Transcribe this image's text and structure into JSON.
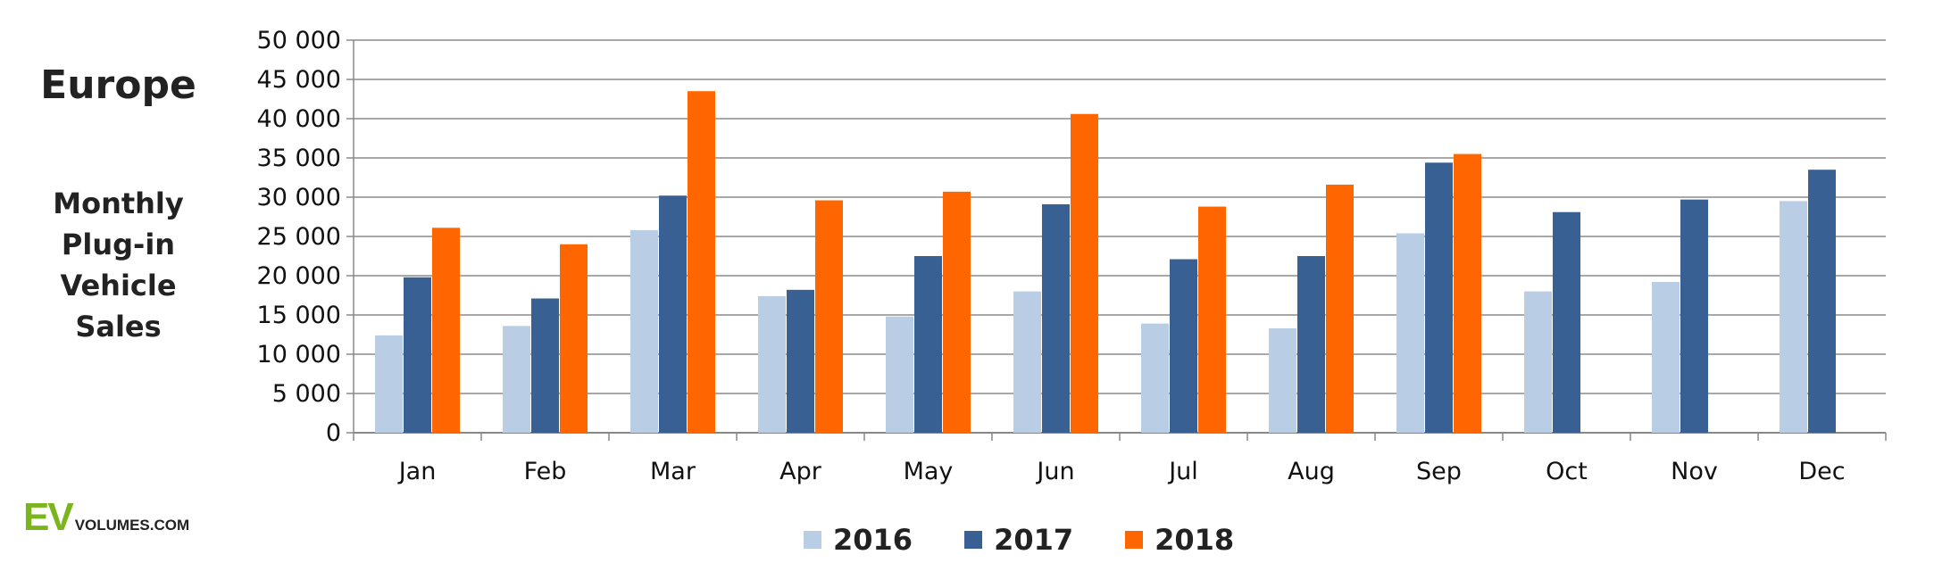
{
  "region_title": "Europe",
  "subtitle_lines": [
    "Monthly",
    "Plug-in",
    "Vehicle",
    "Sales"
  ],
  "logo": {
    "ev": "EV",
    "rest": "VOLUMES.COM"
  },
  "chart_data": {
    "type": "bar",
    "title": "Europe",
    "subtitle": "Monthly Plug-in Vehicle Sales",
    "categories": [
      "Jan",
      "Feb",
      "Mar",
      "Apr",
      "May",
      "Jun",
      "Jul",
      "Aug",
      "Sep",
      "Oct",
      "Nov",
      "Dec"
    ],
    "ylim": [
      0,
      50000
    ],
    "yticks": [
      0,
      5000,
      10000,
      15000,
      20000,
      25000,
      30000,
      35000,
      40000,
      45000,
      50000
    ],
    "ytick_labels": [
      "0",
      "5 000",
      "10 000",
      "15 000",
      "20 000",
      "25 000",
      "30 000",
      "35 000",
      "40 000",
      "45 000",
      "50 000"
    ],
    "grid": "horizontal",
    "legend_position": "bottom",
    "series": [
      {
        "name": "2016",
        "color": "#b9cde4",
        "values": [
          12400,
          13600,
          25800,
          17400,
          14800,
          18000,
          13900,
          13300,
          25400,
          18000,
          19200,
          29500
        ]
      },
      {
        "name": "2017",
        "color": "#386092",
        "values": [
          19800,
          17100,
          30200,
          18200,
          22500,
          29100,
          22100,
          22500,
          34400,
          28100,
          29700,
          33500
        ]
      },
      {
        "name": "2018",
        "color": "#ff6600",
        "values": [
          26100,
          24000,
          43500,
          29600,
          30700,
          40600,
          28800,
          31600,
          35500,
          null,
          null,
          null
        ]
      }
    ]
  }
}
